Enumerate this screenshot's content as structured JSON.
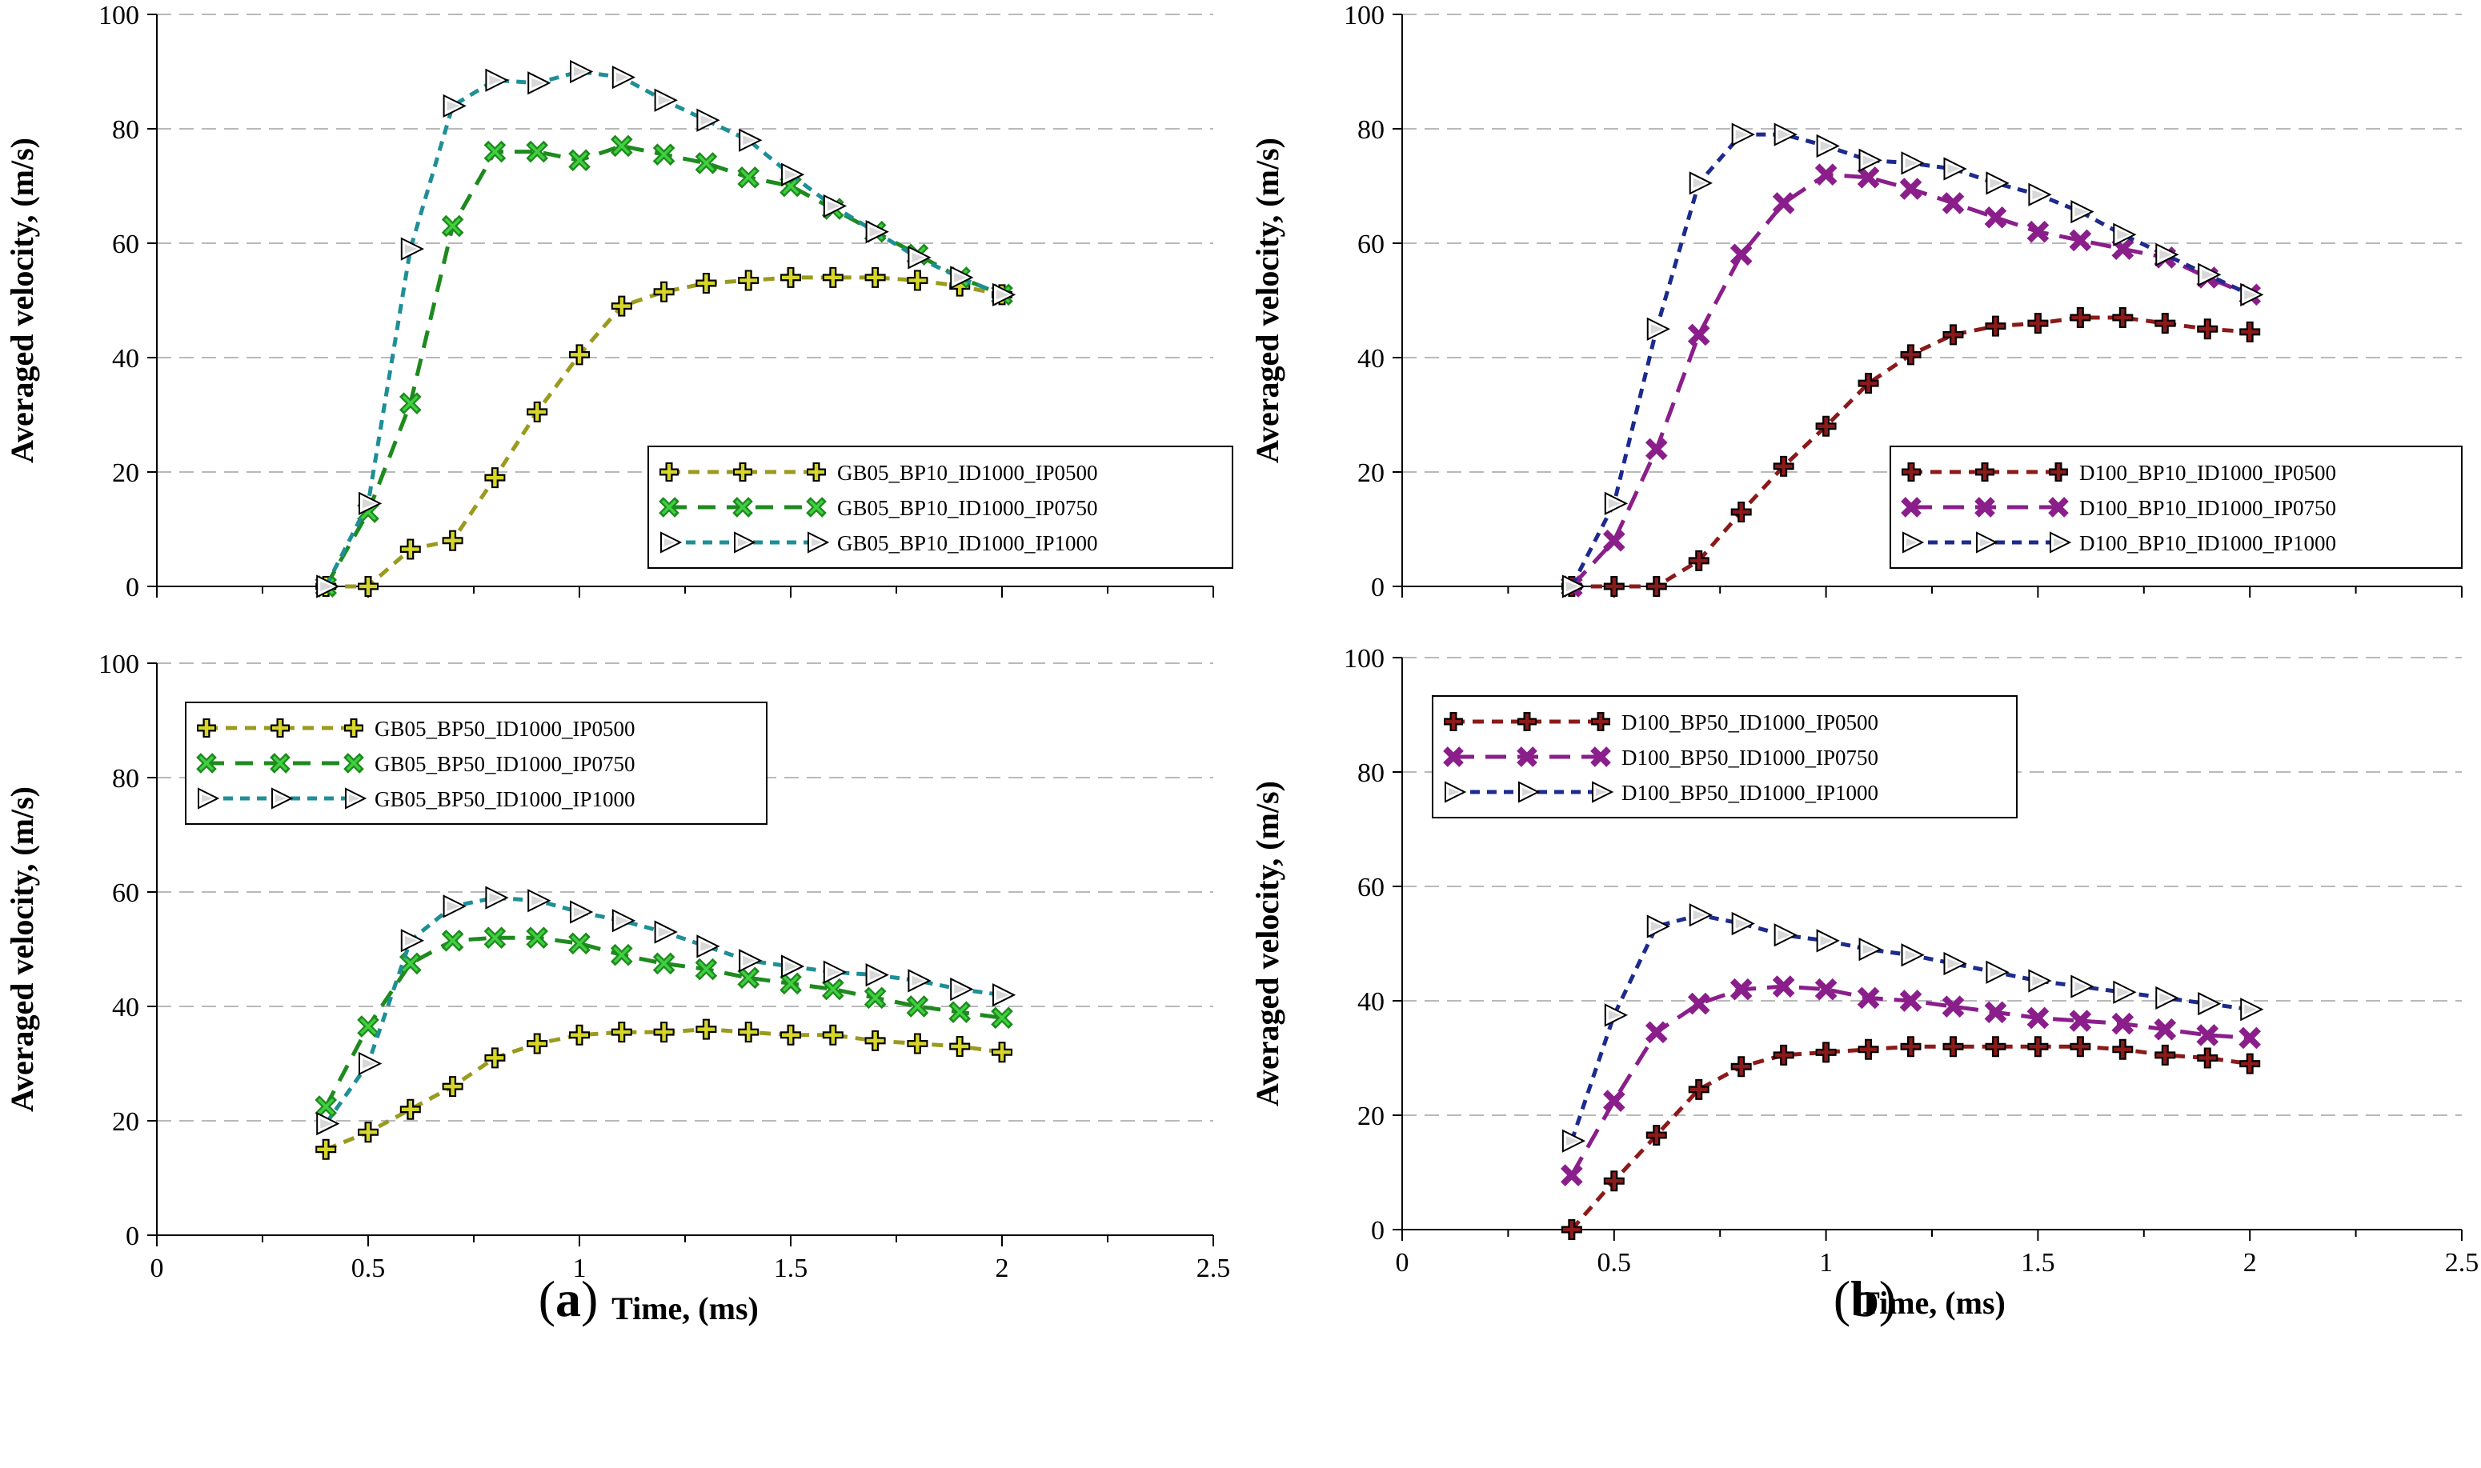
{
  "colors": {
    "ip0500_a": "#9a9a1e",
    "ip0750_a": "#1e8a1e",
    "ip1000_a": "#1e8f96",
    "ip0500_b": "#8b1a1a",
    "ip0750_b": "#8a1e8a",
    "ip1000_b": "#1c2b8c",
    "marker_plus_fill_a": "#d6d62a",
    "marker_x_fill_a": "#3fcf3f",
    "marker_plus_fill_b": "#8b1a1a",
    "marker_x_fill_b": "#8a1e8a"
  },
  "captions": [
    {
      "open": "(",
      "letter": "a",
      "close": ")"
    },
    {
      "open": "(",
      "letter": "b",
      "close": ")"
    }
  ],
  "chart_data": [
    {
      "type": "line",
      "panel": "top-left",
      "ylabel": "Averaged velocity, (m/s)",
      "xlabel": "",
      "xlim": [
        0,
        2.5
      ],
      "ylim": [
        0,
        100
      ],
      "xticks": [
        "0",
        "0.5",
        "1",
        "1.5",
        "2",
        "2.5"
      ],
      "yticks": [
        "0",
        "20",
        "40",
        "60",
        "80",
        "100"
      ],
      "show_xtick_labels": false,
      "grid": "horizontal dashed",
      "legend_position": "middle-right",
      "series": [
        {
          "name": "GB05_BP10_ID1000_IP0500",
          "marker": "plus",
          "color_key": "ip0500_a",
          "fill_key": "marker_plus_fill_a",
          "dash": "14 10",
          "x": [
            0.4,
            0.5,
            0.6,
            0.7,
            0.8,
            0.9,
            1.0,
            1.1,
            1.2,
            1.3,
            1.4,
            1.5,
            1.6,
            1.7,
            1.8,
            1.9,
            2.0
          ],
          "y": [
            0,
            0,
            6.5,
            8,
            19,
            30.5,
            40.5,
            49,
            51.5,
            53,
            53.5,
            54,
            54,
            54,
            53.5,
            52.5,
            51
          ]
        },
        {
          "name": "GB05_BP10_ID1000_IP0750",
          "marker": "x",
          "color_key": "ip0750_a",
          "fill_key": "marker_x_fill_a",
          "dash": "22 14",
          "x": [
            0.4,
            0.5,
            0.6,
            0.7,
            0.8,
            0.9,
            1.0,
            1.1,
            1.2,
            1.3,
            1.4,
            1.5,
            1.6,
            1.7,
            1.8,
            1.9,
            2.0
          ],
          "y": [
            0,
            13,
            32,
            63,
            76,
            76,
            74.5,
            77,
            75.5,
            74,
            71.5,
            70,
            66,
            62,
            58,
            54,
            51
          ]
        },
        {
          "name": "GB05_BP10_ID1000_IP1000",
          "marker": "triangle",
          "color_key": "ip1000_a",
          "fill_key": "",
          "dash": "12 9",
          "x": [
            0.4,
            0.5,
            0.6,
            0.7,
            0.8,
            0.9,
            1.0,
            1.1,
            1.2,
            1.3,
            1.4,
            1.5,
            1.6,
            1.7,
            1.8,
            1.9,
            2.0
          ],
          "y": [
            0,
            14.5,
            59,
            84,
            88.5,
            88,
            90,
            89,
            85,
            81.5,
            78,
            72,
            66.5,
            62,
            57.5,
            54,
            51
          ]
        }
      ]
    },
    {
      "type": "line",
      "panel": "top-right",
      "ylabel": "Averaged velocity, (m/s)",
      "xlabel": "",
      "xlim": [
        0,
        2.5
      ],
      "ylim": [
        0,
        100
      ],
      "xticks": [
        "0",
        "0.5",
        "1",
        "1.5",
        "2",
        "2.5"
      ],
      "yticks": [
        "0",
        "20",
        "40",
        "60",
        "80",
        "100"
      ],
      "show_xtick_labels": false,
      "grid": "horizontal dashed",
      "legend_position": "middle-right",
      "series": [
        {
          "name": "D100_BP10_ID1000_IP0500",
          "marker": "plus",
          "color_key": "ip0500_b",
          "fill_key": "marker_plus_fill_b",
          "dash": "14 10",
          "x": [
            0.4,
            0.5,
            0.6,
            0.7,
            0.8,
            0.9,
            1.0,
            1.1,
            1.2,
            1.3,
            1.4,
            1.5,
            1.6,
            1.7,
            1.8,
            1.9,
            2.0
          ],
          "y": [
            0,
            0,
            0,
            4.5,
            13,
            21,
            28,
            35.5,
            40.5,
            44,
            45.5,
            46,
            47,
            47,
            46,
            45,
            44.5
          ]
        },
        {
          "name": "D100_BP10_ID1000_IP0750",
          "marker": "x",
          "color_key": "ip0750_b",
          "fill_key": "marker_x_fill_b",
          "dash": "26 14",
          "x": [
            0.4,
            0.5,
            0.6,
            0.7,
            0.8,
            0.9,
            1.0,
            1.1,
            1.2,
            1.3,
            1.4,
            1.5,
            1.6,
            1.7,
            1.8,
            1.9,
            2.0
          ],
          "y": [
            0,
            8,
            24,
            44,
            58,
            67,
            72,
            71.5,
            69.5,
            67,
            64.5,
            62,
            60.5,
            59,
            57.5,
            54,
            51
          ]
        },
        {
          "name": "D100_BP10_ID1000_IP1000",
          "marker": "triangle",
          "color_key": "ip1000_b",
          "fill_key": "",
          "dash": "12 9",
          "x": [
            0.4,
            0.5,
            0.6,
            0.7,
            0.8,
            0.9,
            1.0,
            1.1,
            1.2,
            1.3,
            1.4,
            1.5,
            1.6,
            1.7,
            1.8,
            1.9,
            2.0
          ],
          "y": [
            0,
            14.5,
            45,
            70.5,
            79,
            79,
            77,
            74.5,
            74,
            73,
            70.5,
            68.5,
            65.5,
            61.5,
            58,
            54.5,
            51
          ]
        }
      ]
    },
    {
      "type": "line",
      "panel": "bottom-left",
      "ylabel": "Averaged velocity, (m/s)",
      "xlabel": "Time, (ms)",
      "xlim": [
        0,
        2.5
      ],
      "ylim": [
        0,
        100
      ],
      "xticks": [
        "0",
        "0.5",
        "1",
        "1.5",
        "2",
        "2.5"
      ],
      "yticks": [
        "0",
        "20",
        "40",
        "60",
        "80",
        "100"
      ],
      "show_xtick_labels": true,
      "grid": "horizontal dashed",
      "legend_position": "top-left",
      "series": [
        {
          "name": "GB05_BP50_ID1000_IP0500",
          "marker": "plus",
          "color_key": "ip0500_a",
          "fill_key": "marker_plus_fill_a",
          "dash": "14 10",
          "x": [
            0.4,
            0.5,
            0.6,
            0.7,
            0.8,
            0.9,
            1.0,
            1.1,
            1.2,
            1.3,
            1.4,
            1.5,
            1.6,
            1.7,
            1.8,
            1.9,
            2.0
          ],
          "y": [
            15,
            18,
            22,
            26,
            31,
            33.5,
            35,
            35.5,
            35.5,
            36,
            35.5,
            35,
            35,
            34,
            33.5,
            33,
            32
          ]
        },
        {
          "name": "GB05_BP50_ID1000_IP0750",
          "marker": "x",
          "color_key": "ip0750_a",
          "fill_key": "marker_x_fill_a",
          "dash": "22 14",
          "x": [
            0.4,
            0.5,
            0.6,
            0.7,
            0.8,
            0.9,
            1.0,
            1.1,
            1.2,
            1.3,
            1.4,
            1.5,
            1.6,
            1.7,
            1.8,
            1.9,
            2.0
          ],
          "y": [
            22.5,
            36.5,
            47.5,
            51.5,
            52,
            52,
            51,
            49,
            47.5,
            46.5,
            45,
            44,
            43,
            41.5,
            40,
            39,
            38
          ]
        },
        {
          "name": "GB05_BP50_ID1000_IP1000",
          "marker": "triangle",
          "color_key": "ip1000_a",
          "fill_key": "",
          "dash": "12 9",
          "x": [
            0.4,
            0.5,
            0.6,
            0.7,
            0.8,
            0.9,
            1.0,
            1.1,
            1.2,
            1.3,
            1.4,
            1.5,
            1.6,
            1.7,
            1.8,
            1.9,
            2.0
          ],
          "y": [
            19.5,
            30,
            51.5,
            57.5,
            59,
            58.5,
            56.5,
            55,
            53,
            50.5,
            48,
            47,
            46,
            45.5,
            44.5,
            43,
            42
          ]
        }
      ]
    },
    {
      "type": "line",
      "panel": "bottom-right",
      "ylabel": "Averaged velocity, (m/s)",
      "xlabel": "Time, (ms)",
      "xlim": [
        0,
        2.5
      ],
      "ylim": [
        0,
        100
      ],
      "xticks": [
        "0",
        "0.5",
        "1",
        "1.5",
        "2",
        "2.5"
      ],
      "yticks": [
        "0",
        "20",
        "40",
        "60",
        "80",
        "100"
      ],
      "show_xtick_labels": true,
      "grid": "horizontal dashed",
      "legend_position": "top-left",
      "series": [
        {
          "name": "D100_BP50_ID1000_IP0500",
          "marker": "plus",
          "color_key": "ip0500_b",
          "fill_key": "marker_plus_fill_b",
          "dash": "14 10",
          "x": [
            0.4,
            0.5,
            0.6,
            0.7,
            0.8,
            0.9,
            1.0,
            1.1,
            1.2,
            1.3,
            1.4,
            1.5,
            1.6,
            1.7,
            1.8,
            1.9,
            2.0
          ],
          "y": [
            0,
            8.5,
            16.5,
            24.5,
            28.5,
            30.5,
            31,
            31.5,
            32,
            32,
            32,
            32,
            32,
            31.5,
            30.5,
            30,
            29
          ]
        },
        {
          "name": "D100_BP50_ID1000_IP0750",
          "marker": "x",
          "color_key": "ip0750_b",
          "fill_key": "marker_x_fill_b",
          "dash": "26 14",
          "x": [
            0.4,
            0.5,
            0.6,
            0.7,
            0.8,
            0.9,
            1.0,
            1.1,
            1.2,
            1.3,
            1.4,
            1.5,
            1.6,
            1.7,
            1.8,
            1.9,
            2.0
          ],
          "y": [
            9.5,
            22.5,
            34.5,
            39.5,
            42,
            42.5,
            42,
            40.5,
            40,
            39,
            38,
            37,
            36.5,
            36,
            35,
            34,
            33.5
          ]
        },
        {
          "name": "D100_BP50_ID1000_IP1000",
          "marker": "triangle",
          "color_key": "ip1000_b",
          "fill_key": "",
          "dash": "12 9",
          "x": [
            0.4,
            0.5,
            0.6,
            0.7,
            0.8,
            0.9,
            1.0,
            1.1,
            1.2,
            1.3,
            1.4,
            1.5,
            1.6,
            1.7,
            1.8,
            1.9,
            2.0
          ],
          "y": [
            15.5,
            37.5,
            53,
            55,
            53.5,
            51.5,
            50.5,
            49,
            48,
            46.5,
            45,
            43.5,
            42.5,
            41.5,
            40.5,
            39.5,
            38.5
          ]
        }
      ]
    }
  ]
}
